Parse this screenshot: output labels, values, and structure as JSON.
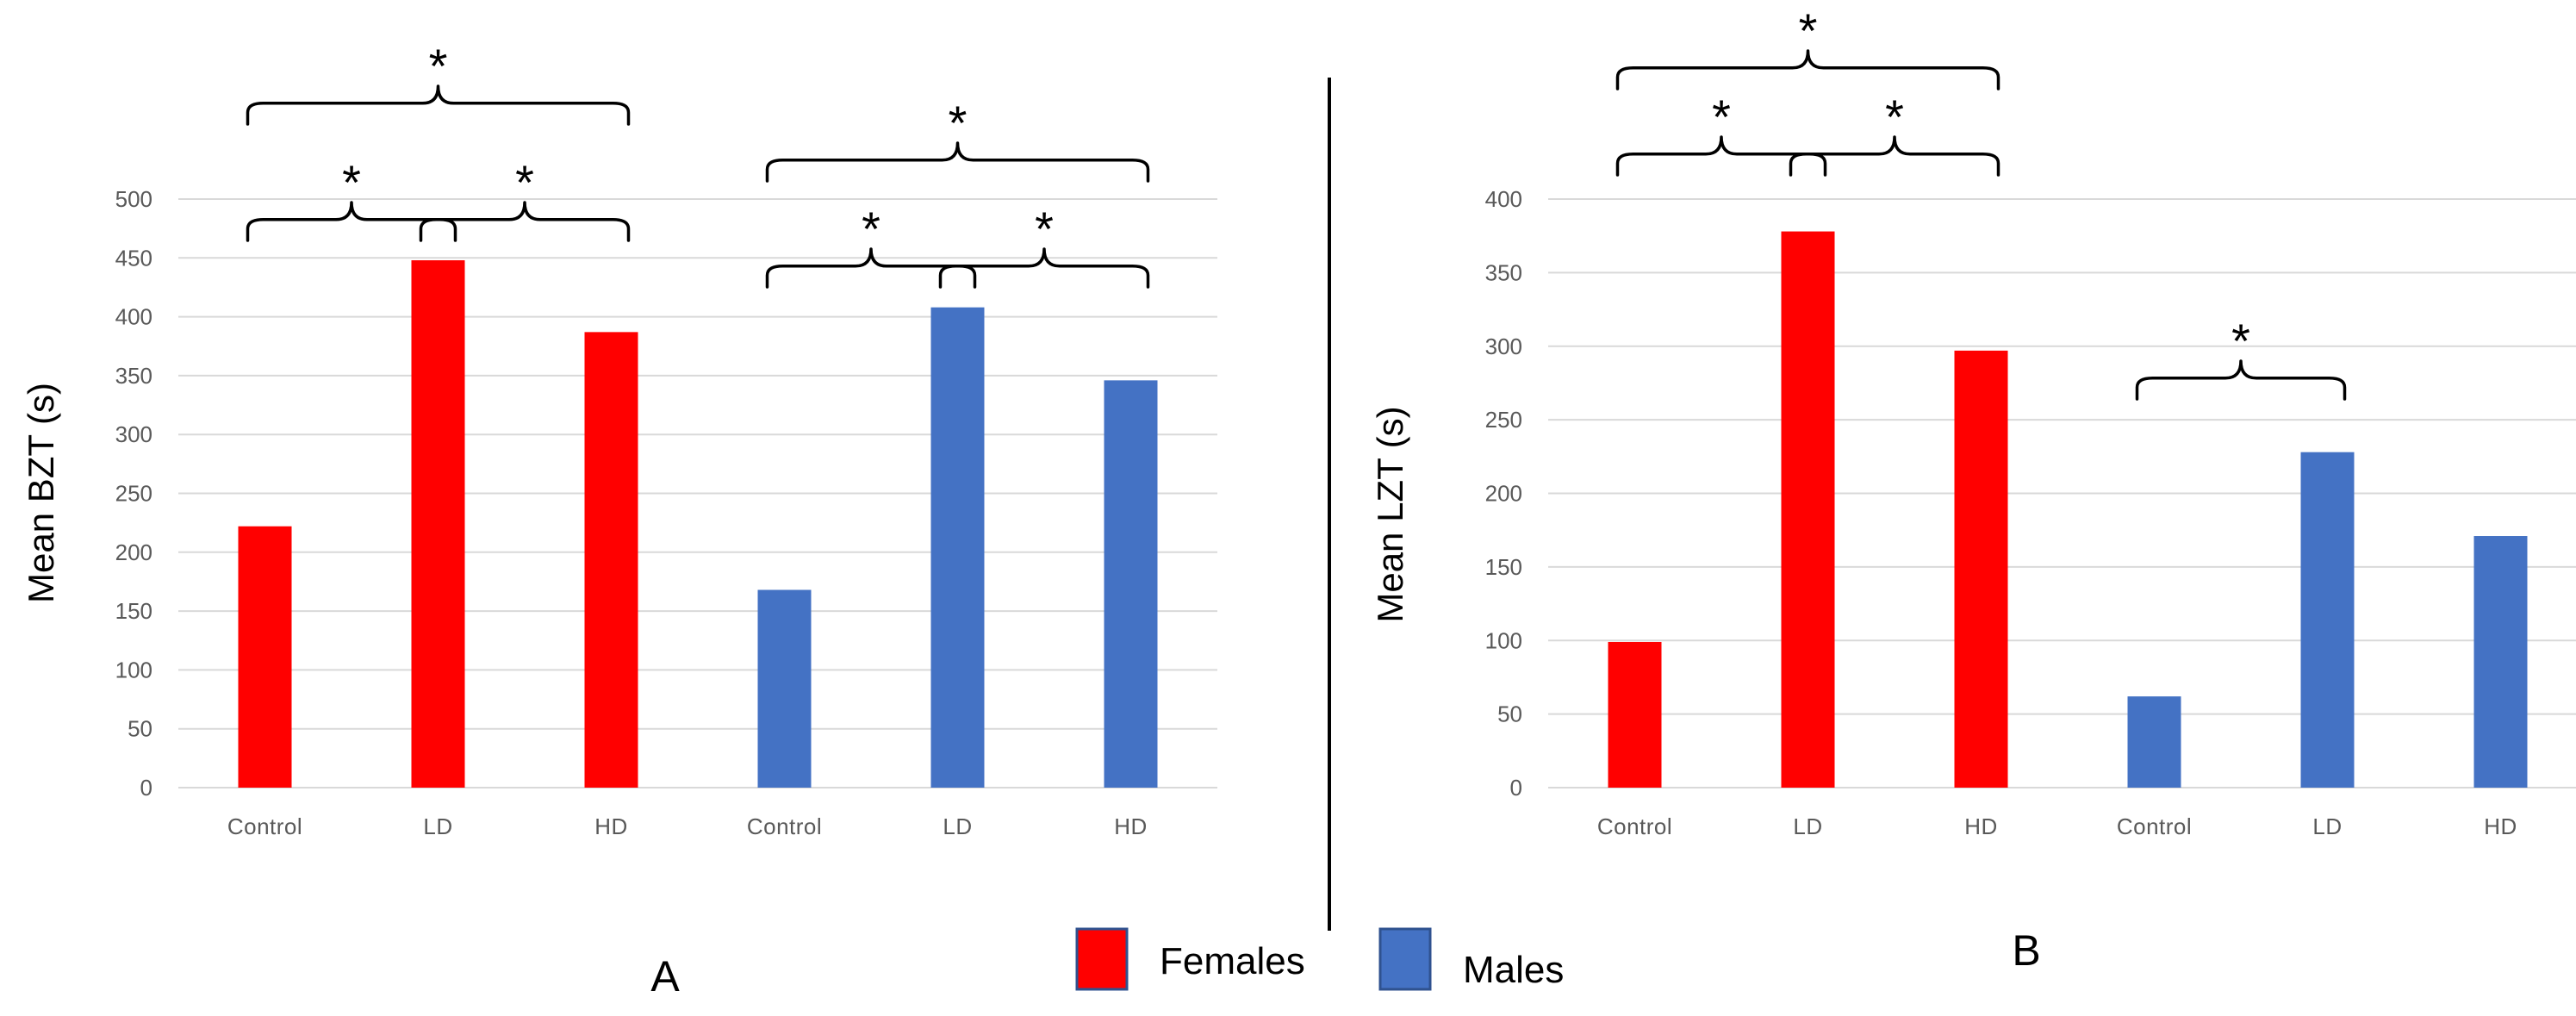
{
  "chart_data": [
    {
      "panel": "A",
      "type": "bar",
      "ylabel": "Mean BZT (s)",
      "ylim": [
        0,
        500
      ],
      "yticks": [
        0,
        50,
        100,
        150,
        200,
        250,
        300,
        350,
        400,
        450,
        500
      ],
      "categories": [
        "Control",
        "LD",
        "HD",
        "Control",
        "LD",
        "HD"
      ],
      "values": [
        222,
        448,
        387,
        168,
        408,
        346
      ],
      "groups": [
        "Females",
        "Females",
        "Females",
        "Males",
        "Males",
        "Males"
      ],
      "grid": true,
      "annotations": [
        {
          "label": "*",
          "from": 0,
          "to": 1
        },
        {
          "label": "*",
          "from": 1,
          "to": 2
        },
        {
          "label": "*",
          "from": 0,
          "to": 2
        },
        {
          "label": "*",
          "from": 3,
          "to": 4
        },
        {
          "label": "*",
          "from": 4,
          "to": 5
        },
        {
          "label": "*",
          "from": 3,
          "to": 5
        }
      ]
    },
    {
      "panel": "B",
      "type": "bar",
      "ylabel": "Mean LZT (s)",
      "ylim": [
        0,
        400
      ],
      "yticks": [
        0,
        50,
        100,
        150,
        200,
        250,
        300,
        350,
        400
      ],
      "categories": [
        "Control",
        "LD",
        "HD",
        "Control",
        "LD",
        "HD"
      ],
      "values": [
        99,
        378,
        297,
        62,
        228,
        171
      ],
      "groups": [
        "Females",
        "Females",
        "Females",
        "Males",
        "Males",
        "Males"
      ],
      "grid": true,
      "annotations": [
        {
          "label": "*",
          "from": 0,
          "to": 1
        },
        {
          "label": "*",
          "from": 1,
          "to": 2
        },
        {
          "label": "*",
          "from": 0,
          "to": 2
        },
        {
          "label": "*",
          "from": 3,
          "to": 4
        },
        {
          "label": "*",
          "from": 3,
          "to": 5
        }
      ]
    }
  ],
  "legend": {
    "placement": "bottom-center",
    "items": [
      {
        "label": "Females",
        "color": "#ff0000"
      },
      {
        "label": "Males",
        "color": "#4472c4"
      }
    ]
  },
  "colors": {
    "Females": "#ff0000",
    "Males": "#4472c4"
  }
}
